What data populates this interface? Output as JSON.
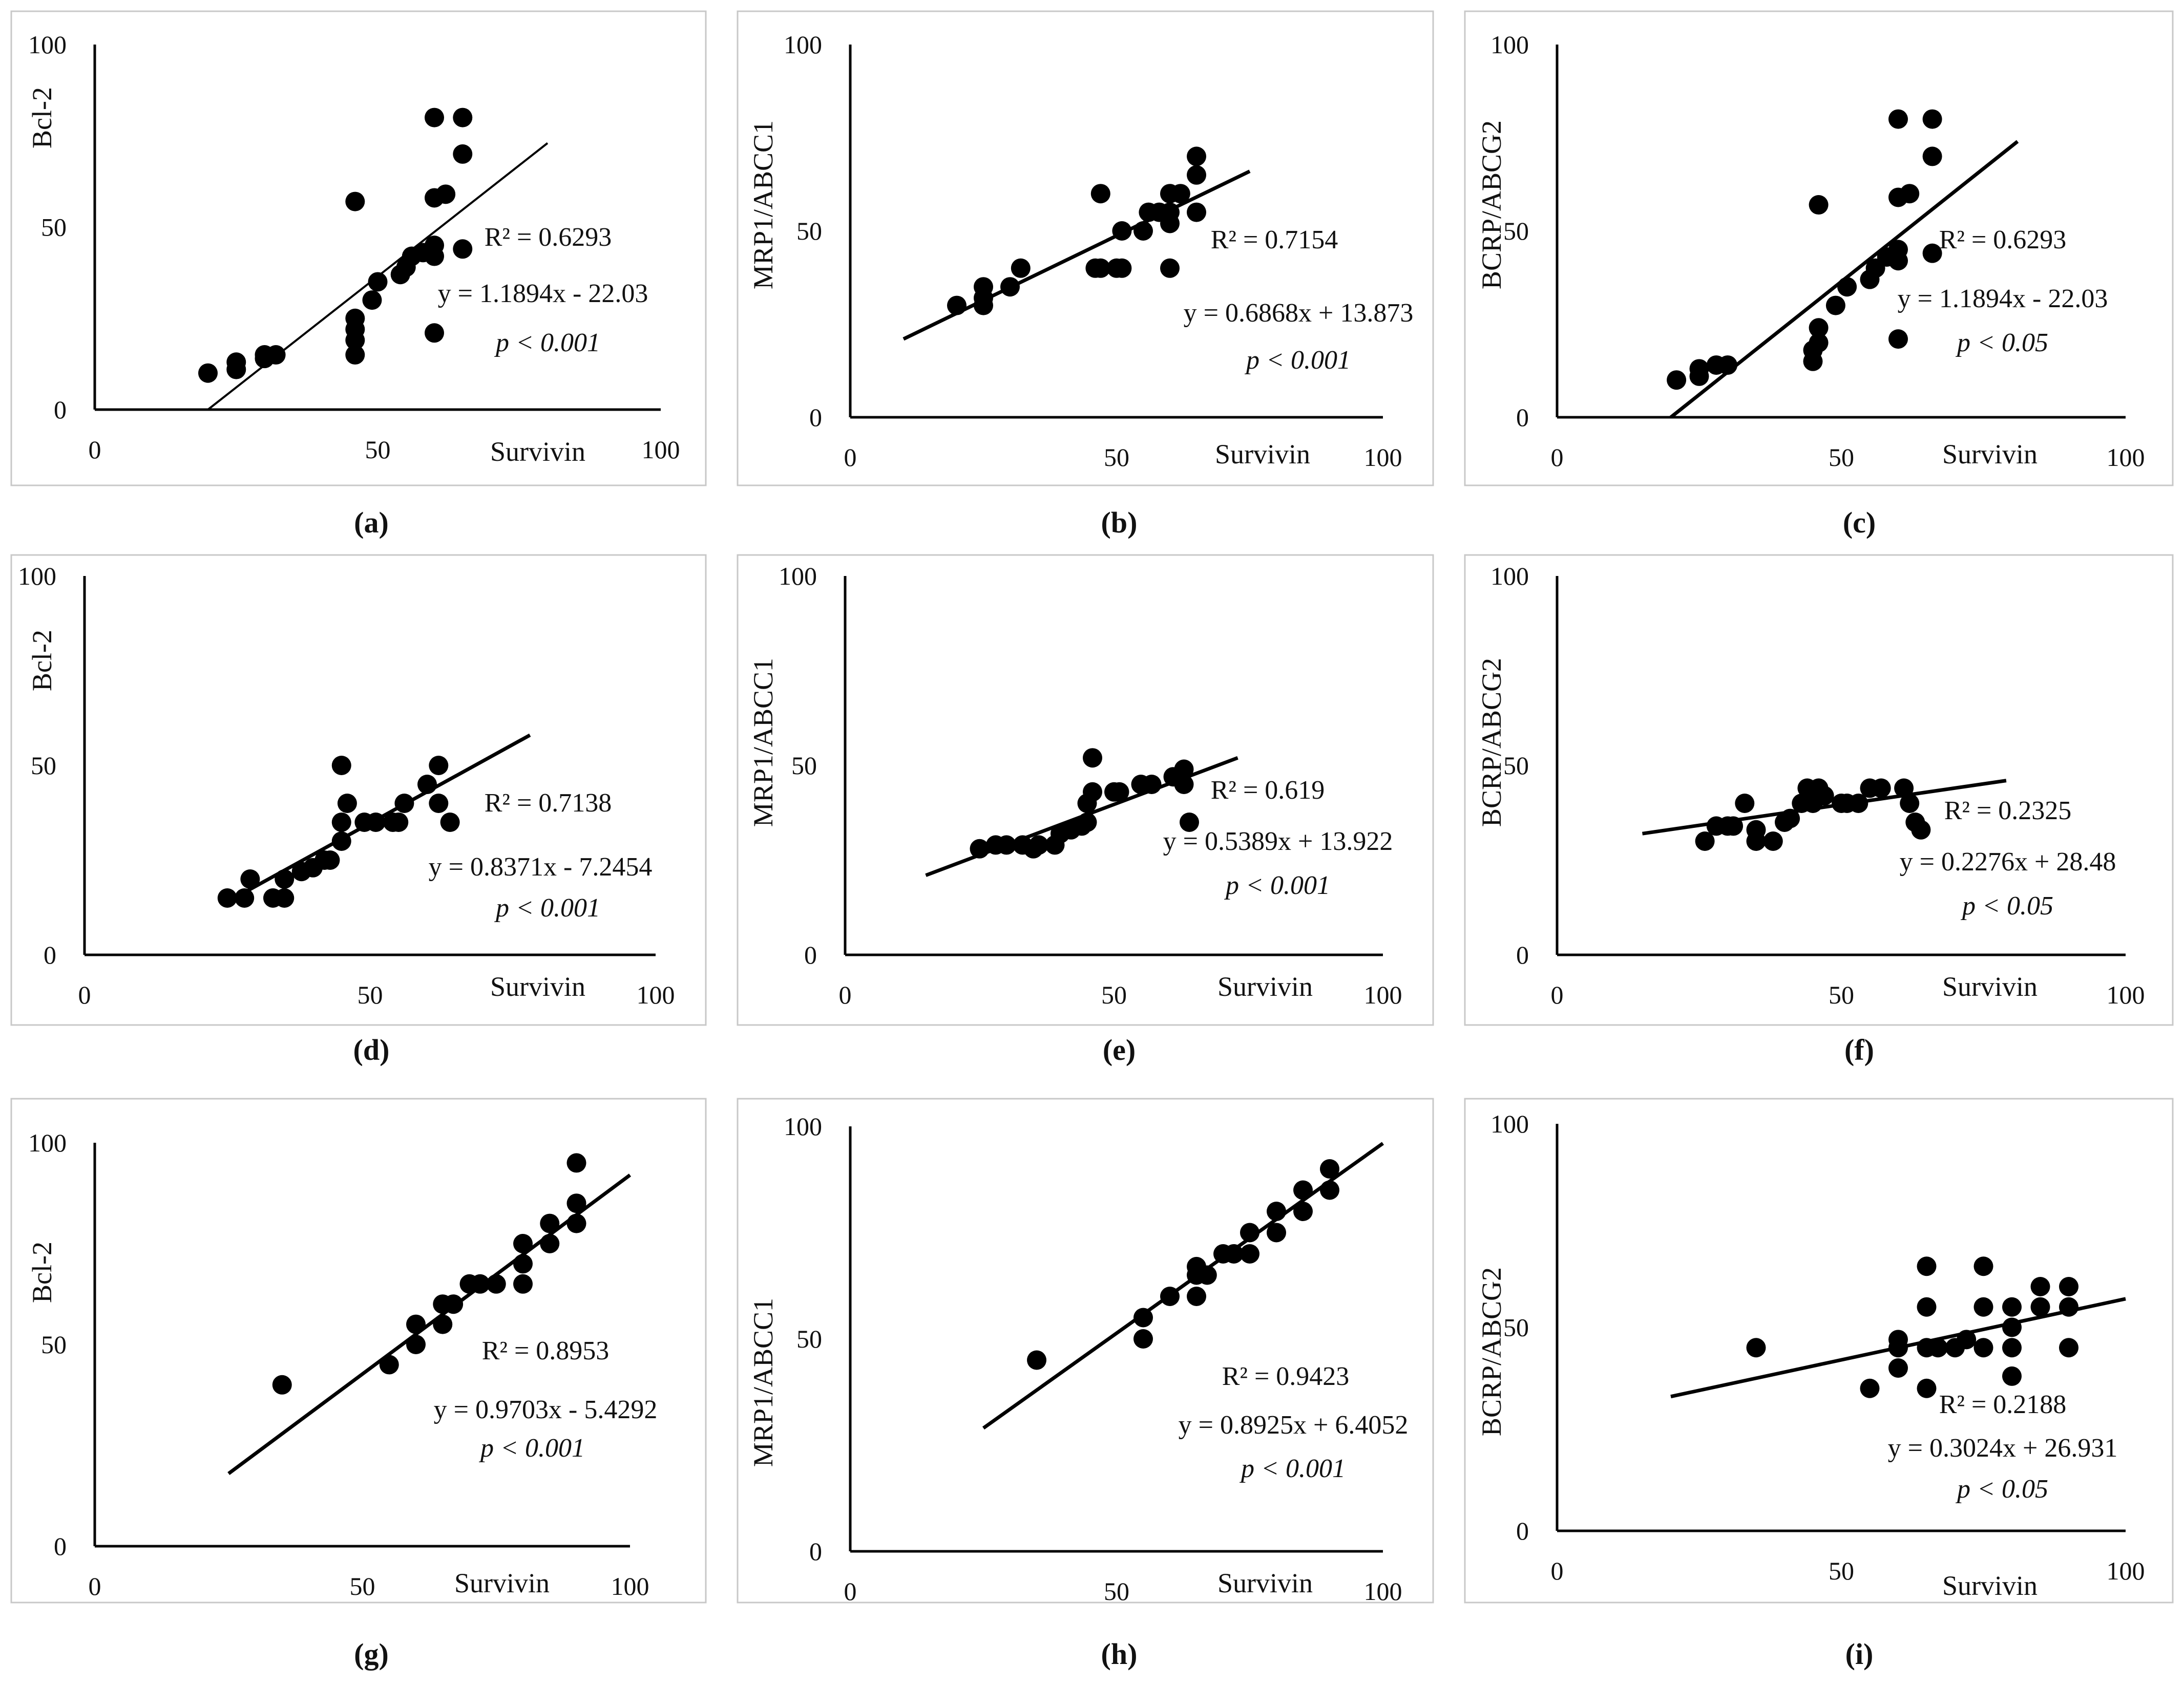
{
  "chart_data": [
    {
      "type": "scatter",
      "id": "a",
      "label": "(a)",
      "xlabel": "Survivin",
      "ylabel": "Bcl-2",
      "xlim": [
        0,
        100
      ],
      "ylim": [
        0,
        100
      ],
      "xticks": [
        "0",
        "50",
        "100"
      ],
      "yticks": [
        "0",
        "50",
        "100"
      ],
      "trendline": [
        [
          20,
          0
        ],
        [
          80,
          73
        ]
      ],
      "annotations": [
        "R² = 0.6293",
        "y = 1.1894x - 22.03",
        "p < 0.001"
      ],
      "points": [
        [
          20,
          10
        ],
        [
          25,
          11
        ],
        [
          25,
          13
        ],
        [
          30,
          14
        ],
        [
          30,
          15
        ],
        [
          32,
          15
        ],
        [
          46,
          15
        ],
        [
          46,
          19
        ],
        [
          46,
          22
        ],
        [
          46,
          25
        ],
        [
          46,
          57
        ],
        [
          49,
          30
        ],
        [
          50,
          35
        ],
        [
          54,
          37
        ],
        [
          55,
          39
        ],
        [
          56,
          42
        ],
        [
          58,
          43
        ],
        [
          60,
          21
        ],
        [
          60,
          42
        ],
        [
          60,
          45
        ],
        [
          60,
          58
        ],
        [
          60,
          80
        ],
        [
          62,
          59
        ],
        [
          65,
          44
        ],
        [
          65,
          70
        ],
        [
          65,
          80
        ]
      ]
    },
    {
      "type": "scatter",
      "id": "b",
      "label": "(b)",
      "xlabel": "Survivin",
      "ylabel": "MRP1/ABCC1",
      "xlim": [
        0,
        100
      ],
      "ylim": [
        0,
        100
      ],
      "xticks": [
        "0",
        "50",
        "100"
      ],
      "yticks": [
        "0",
        "50",
        "100"
      ],
      "trendline": [
        [
          10,
          21
        ],
        [
          75,
          66
        ]
      ],
      "annotations": [
        "R² = 0.7154",
        "y = 0.6868x + 13.873",
        "p < 0.001"
      ],
      "points": [
        [
          20,
          30
        ],
        [
          25,
          30
        ],
        [
          25,
          32
        ],
        [
          25,
          35
        ],
        [
          30,
          35
        ],
        [
          32,
          40
        ],
        [
          46,
          40
        ],
        [
          47,
          40
        ],
        [
          47,
          60
        ],
        [
          50,
          40
        ],
        [
          51,
          40
        ],
        [
          51,
          50
        ],
        [
          55,
          50
        ],
        [
          56,
          55
        ],
        [
          58,
          55
        ],
        [
          60,
          40
        ],
        [
          60,
          52
        ],
        [
          60,
          55
        ],
        [
          60,
          60
        ],
        [
          62,
          60
        ],
        [
          65,
          55
        ],
        [
          65,
          65
        ],
        [
          65,
          70
        ]
      ]
    },
    {
      "type": "scatter",
      "id": "c",
      "label": "(c)",
      "xlabel": "Survivin",
      "ylabel": "BCRP/ABCG2",
      "xlim": [
        0,
        100
      ],
      "ylim": [
        0,
        100
      ],
      "xticks": [
        "0",
        "50",
        "100"
      ],
      "yticks": [
        "0",
        "50",
        "100"
      ],
      "trendline": [
        [
          20,
          0
        ],
        [
          81,
          74
        ]
      ],
      "annotations": [
        "R² = 0.6293",
        "y = 1.1894x - 22.03",
        "p < 0.05"
      ],
      "points": [
        [
          21,
          10
        ],
        [
          25,
          11
        ],
        [
          25,
          13
        ],
        [
          28,
          14
        ],
        [
          30,
          14
        ],
        [
          45,
          15
        ],
        [
          45,
          18
        ],
        [
          46,
          20
        ],
        [
          46,
          24
        ],
        [
          46,
          57
        ],
        [
          49,
          30
        ],
        [
          51,
          35
        ],
        [
          55,
          37
        ],
        [
          56,
          40
        ],
        [
          58,
          43
        ],
        [
          60,
          21
        ],
        [
          60,
          42
        ],
        [
          60,
          45
        ],
        [
          60,
          59
        ],
        [
          60,
          80
        ],
        [
          62,
          60
        ],
        [
          66,
          44
        ],
        [
          66,
          70
        ],
        [
          66,
          80
        ]
      ]
    },
    {
      "type": "scatter",
      "id": "d",
      "label": "(d)",
      "xlabel": "Survivin",
      "ylabel": "Bcl-2",
      "xlim": [
        0,
        100
      ],
      "ylim": [
        0,
        100
      ],
      "xticks": [
        "0",
        "50",
        "100"
      ],
      "yticks": [
        "0",
        "50",
        "100"
      ],
      "trendline": [
        [
          25,
          14
        ],
        [
          78,
          58
        ]
      ],
      "annotations": [
        "R² = 0.7138",
        "y = 0.8371x - 7.2454",
        "p < 0.001"
      ],
      "points": [
        [
          25,
          15
        ],
        [
          28,
          15
        ],
        [
          29,
          20
        ],
        [
          33,
          15
        ],
        [
          35,
          15
        ],
        [
          35,
          20
        ],
        [
          38,
          22
        ],
        [
          40,
          23
        ],
        [
          42,
          25
        ],
        [
          43,
          25
        ],
        [
          45,
          30
        ],
        [
          45,
          35
        ],
        [
          45,
          50
        ],
        [
          46,
          40
        ],
        [
          49,
          35
        ],
        [
          51,
          35
        ],
        [
          54,
          35
        ],
        [
          55,
          35
        ],
        [
          56,
          40
        ],
        [
          60,
          45
        ],
        [
          62,
          40
        ],
        [
          62,
          50
        ],
        [
          64,
          35
        ]
      ]
    },
    {
      "type": "scatter",
      "id": "e",
      "label": "(e)",
      "xlabel": "Survivin",
      "ylabel": "MRP1/ABCC1",
      "xlim": [
        0,
        100
      ],
      "ylim": [
        0,
        100
      ],
      "xticks": [
        "0",
        "50",
        "100"
      ],
      "yticks": [
        "0",
        "50",
        "100"
      ],
      "trendline": [
        [
          15,
          21
        ],
        [
          73,
          52
        ]
      ],
      "annotations": [
        "R² = 0.619",
        "y = 0.5389x + 13.922",
        "p < 0.001"
      ],
      "points": [
        [
          25,
          28
        ],
        [
          28,
          29
        ],
        [
          30,
          29
        ],
        [
          33,
          29
        ],
        [
          35,
          28
        ],
        [
          36,
          29
        ],
        [
          39,
          29
        ],
        [
          40,
          32
        ],
        [
          42,
          33
        ],
        [
          44,
          34
        ],
        [
          45,
          35
        ],
        [
          45,
          40
        ],
        [
          46,
          43
        ],
        [
          46,
          52
        ],
        [
          50,
          43
        ],
        [
          51,
          43
        ],
        [
          55,
          45
        ],
        [
          57,
          45
        ],
        [
          61,
          47
        ],
        [
          63,
          45
        ],
        [
          63,
          49
        ],
        [
          64,
          35
        ]
      ]
    },
    {
      "type": "scatter",
      "id": "f",
      "label": "(f)",
      "xlabel": "Survivin",
      "ylabel": "BCRP/ABCG2",
      "xlim": [
        0,
        100
      ],
      "ylim": [
        0,
        100
      ],
      "xticks": [
        "0",
        "50",
        "100"
      ],
      "yticks": [
        "0",
        "50",
        "100"
      ],
      "trendline": [
        [
          15,
          32
        ],
        [
          79,
          46
        ]
      ],
      "annotations": [
        "R² = 0.2325",
        "y = 0.2276x + 28.48",
        "p < 0.05"
      ],
      "points": [
        [
          26,
          30
        ],
        [
          28,
          34
        ],
        [
          30,
          34
        ],
        [
          31,
          34
        ],
        [
          33,
          40
        ],
        [
          35,
          30
        ],
        [
          35,
          33
        ],
        [
          38,
          30
        ],
        [
          40,
          35
        ],
        [
          41,
          36
        ],
        [
          43,
          40
        ],
        [
          44,
          44
        ],
        [
          45,
          40
        ],
        [
          46,
          44
        ],
        [
          47,
          42
        ],
        [
          50,
          40
        ],
        [
          51,
          40
        ],
        [
          53,
          40
        ],
        [
          55,
          44
        ],
        [
          57,
          44
        ],
        [
          61,
          44
        ],
        [
          62,
          40
        ],
        [
          63,
          35
        ],
        [
          64,
          33
        ]
      ]
    },
    {
      "type": "scatter",
      "id": "g",
      "label": "(g)",
      "xlabel": "Survivin",
      "ylabel": "Bcl-2",
      "xlim": [
        0,
        100
      ],
      "ylim": [
        0,
        100
      ],
      "xticks": [
        "0",
        "50",
        "100"
      ],
      "yticks": [
        "0",
        "50",
        "100"
      ],
      "trendline": [
        [
          25,
          18
        ],
        [
          100,
          92
        ]
      ],
      "annotations": [
        "R² = 0.8953",
        "y = 0.9703x - 5.4292",
        "p < 0.001"
      ],
      "points": [
        [
          35,
          40
        ],
        [
          55,
          45
        ],
        [
          60,
          50
        ],
        [
          60,
          55
        ],
        [
          65,
          55
        ],
        [
          65,
          60
        ],
        [
          67,
          60
        ],
        [
          70,
          65
        ],
        [
          72,
          65
        ],
        [
          75,
          65
        ],
        [
          80,
          65
        ],
        [
          80,
          70
        ],
        [
          80,
          75
        ],
        [
          85,
          75
        ],
        [
          85,
          80
        ],
        [
          90,
          80
        ],
        [
          90,
          85
        ],
        [
          90,
          95
        ]
      ]
    },
    {
      "type": "scatter",
      "id": "h",
      "label": "(h)",
      "xlabel": "Survivin",
      "ylabel": "MRP1/ABCC1",
      "xlim": [
        0,
        100
      ],
      "ylim": [
        0,
        100
      ],
      "xticks": [
        "0",
        "50",
        "100"
      ],
      "yticks": [
        "0",
        "50",
        "100"
      ],
      "trendline": [
        [
          25,
          29
        ],
        [
          100,
          96
        ]
      ],
      "annotations": [
        "R² = 0.9423",
        "y = 0.8925x + 6.4052",
        "p < 0.001"
      ],
      "points": [
        [
          35,
          45
        ],
        [
          55,
          50
        ],
        [
          55,
          55
        ],
        [
          60,
          60
        ],
        [
          65,
          60
        ],
        [
          65,
          65
        ],
        [
          65,
          67
        ],
        [
          67,
          65
        ],
        [
          70,
          70
        ],
        [
          72,
          70
        ],
        [
          75,
          70
        ],
        [
          75,
          75
        ],
        [
          80,
          75
        ],
        [
          80,
          80
        ],
        [
          85,
          80
        ],
        [
          85,
          85
        ],
        [
          90,
          85
        ],
        [
          90,
          90
        ]
      ]
    },
    {
      "type": "scatter",
      "id": "i",
      "label": "(i)",
      "xlabel": "Survivin",
      "ylabel": "BCRP/ABCG2",
      "xlim": [
        0,
        100
      ],
      "ylim": [
        0,
        100
      ],
      "xticks": [
        "0",
        "50",
        "100"
      ],
      "yticks": [
        "0",
        "50",
        "100"
      ],
      "trendline": [
        [
          20,
          33
        ],
        [
          100,
          57
        ]
      ],
      "annotations": [
        "R² = 0.2188",
        "y = 0.3024x + 26.931",
        "p < 0.05"
      ],
      "points": [
        [
          35,
          45
        ],
        [
          55,
          35
        ],
        [
          60,
          40
        ],
        [
          60,
          45
        ],
        [
          60,
          47
        ],
        [
          65,
          35
        ],
        [
          65,
          45
        ],
        [
          65,
          55
        ],
        [
          65,
          65
        ],
        [
          67,
          45
        ],
        [
          70,
          45
        ],
        [
          72,
          47
        ],
        [
          75,
          45
        ],
        [
          75,
          55
        ],
        [
          75,
          65
        ],
        [
          80,
          38
        ],
        [
          80,
          45
        ],
        [
          80,
          50
        ],
        [
          80,
          55
        ],
        [
          85,
          55
        ],
        [
          85,
          60
        ],
        [
          90,
          45
        ],
        [
          90,
          55
        ],
        [
          90,
          60
        ]
      ]
    }
  ]
}
